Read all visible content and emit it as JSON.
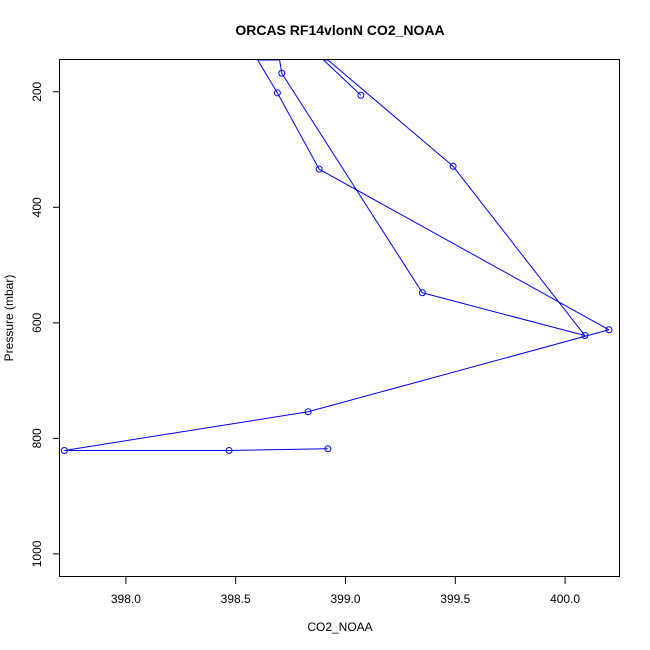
{
  "chart_data": {
    "type": "line",
    "title": "ORCAS RF14vlonN CO2_NOAA",
    "xlabel": "CO2_NOAA",
    "ylabel": "Pressure (mbar)",
    "xlim": [
      397.7,
      400.25
    ],
    "ylim": [
      1040,
      145
    ],
    "y_reversed": true,
    "x_ticks": [
      398.0,
      398.5,
      399.0,
      399.5,
      400.0
    ],
    "x_tick_labels": [
      "398.0",
      "398.5",
      "399.0",
      "399.5",
      "400.0"
    ],
    "y_ticks": [
      200,
      400,
      600,
      800,
      1000
    ],
    "y_tick_labels": [
      "200",
      "400",
      "600",
      "800",
      "1000"
    ],
    "grid": false,
    "markers": "open-circle",
    "series": [
      {
        "color": "#0000ff",
        "points": [
          {
            "x": 398.92,
            "y": 818
          },
          {
            "x": 398.47,
            "y": 821
          },
          {
            "x": 397.72,
            "y": 821
          },
          {
            "x": 398.83,
            "y": 754
          },
          {
            "x": 400.2,
            "y": 612
          },
          {
            "x": 398.88,
            "y": 334
          },
          {
            "x": 398.69,
            "y": 202
          },
          {
            "x": 398.6,
            "y": 145
          },
          {
            "x": 398.7,
            "y": 145
          },
          {
            "x": 398.71,
            "y": 168
          },
          {
            "x": 399.35,
            "y": 548
          },
          {
            "x": 400.09,
            "y": 622
          },
          {
            "x": 399.49,
            "y": 329
          },
          {
            "x": 398.92,
            "y": 145
          },
          {
            "x": 398.9,
            "y": 145
          },
          {
            "x": 399.07,
            "y": 206
          }
        ],
        "marker_visible": [
          true,
          true,
          true,
          true,
          true,
          true,
          true,
          false,
          false,
          true,
          true,
          true,
          true,
          false,
          false,
          true
        ]
      }
    ]
  }
}
